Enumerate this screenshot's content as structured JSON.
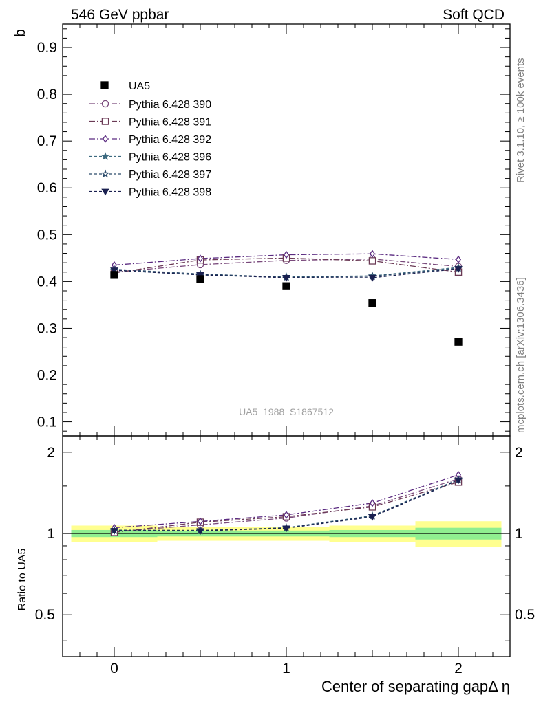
{
  "header": {
    "left_title": "546 GeV ppbar",
    "right_title": "Soft QCD"
  },
  "side_labels": {
    "rivet": "Rivet 3.1.10, ≥ 100k events",
    "mcplots": "mcplots.cern.ch [arXiv:1306.3436]"
  },
  "chart_data": {
    "type": "scatter",
    "analysis_label": "UA5_1988_S1867512",
    "xlabel": "Center of separating gapΔ η",
    "ylabel": "b",
    "ratio_ylabel": "Ratio to UA5",
    "x": [
      0,
      0.5,
      1,
      1.5,
      2
    ],
    "xlim": [
      -0.3,
      2.3
    ],
    "ylim": [
      0.07,
      0.95
    ],
    "ratio_ylim": [
      0.35,
      2.3
    ],
    "x_ticks": [
      "0",
      "1",
      "2"
    ],
    "y_ticks": [
      "0.1",
      "0.2",
      "0.3",
      "0.4",
      "0.5",
      "0.6",
      "0.7",
      "0.8",
      "0.9"
    ],
    "ratio_ticks": [
      "0.5",
      "1",
      "2"
    ],
    "grid": false,
    "legend_position": "top-left",
    "data": {
      "name": "UA5",
      "values": [
        0.414,
        0.405,
        0.39,
        0.354,
        0.271
      ],
      "color": "#000000",
      "marker": "square"
    },
    "series": [
      {
        "name": "Pythia 6.428 390",
        "values": [
          0.42,
          0.436,
          0.445,
          0.448,
          0.432
        ],
        "color": "#7a4a7c",
        "marker": "circle-open",
        "dash": "dashdot"
      },
      {
        "name": "Pythia 6.428 391",
        "values": [
          0.418,
          0.446,
          0.45,
          0.444,
          0.42
        ],
        "color": "#6b3a55",
        "marker": "square-open",
        "dash": "dashdot"
      },
      {
        "name": "Pythia 6.428 392",
        "values": [
          0.435,
          0.449,
          0.457,
          0.459,
          0.447
        ],
        "color": "#5a2a80",
        "marker": "diamond-open",
        "dash": "dashdot"
      },
      {
        "name": "Pythia 6.428 396",
        "values": [
          0.424,
          0.414,
          0.41,
          0.412,
          0.43
        ],
        "color": "#3d6a80",
        "marker": "star-filled",
        "dash": "dashed"
      },
      {
        "name": "Pythia 6.428 397",
        "values": [
          0.426,
          0.416,
          0.409,
          0.411,
          0.428
        ],
        "color": "#2a4a6a",
        "marker": "star-open",
        "dash": "dashed"
      },
      {
        "name": "Pythia 6.428 398",
        "values": [
          0.424,
          0.414,
          0.408,
          0.408,
          0.427
        ],
        "color": "#1a2050",
        "marker": "triangle-down-filled",
        "dash": "dashed"
      }
    ],
    "ratio_bands": {
      "x_edges": [
        -0.25,
        0.25,
        0.75,
        1.25,
        1.75,
        2.25
      ],
      "stat_half_width": [
        0.03,
        0.025,
        0.025,
        0.03,
        0.05
      ],
      "total_half_width": [
        0.07,
        0.06,
        0.06,
        0.07,
        0.11
      ],
      "stat_color": "#90ee90",
      "total_color": "#ffff90"
    }
  }
}
